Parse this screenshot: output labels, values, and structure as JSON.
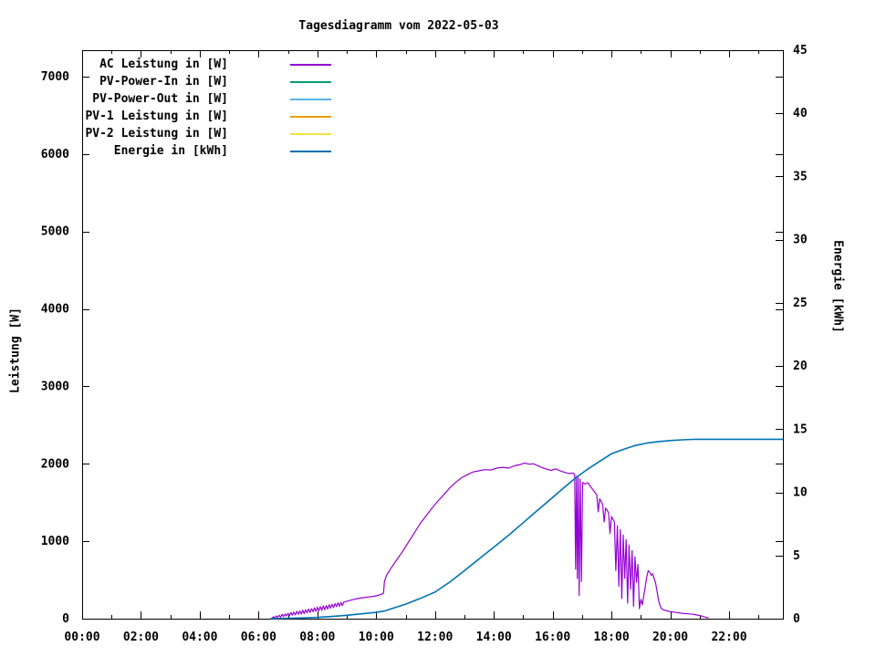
{
  "title": "Tagesdiagramm vom 2022-05-03",
  "chart_data": {
    "type": "line",
    "title": "Tagesdiagramm vom 2022-05-03",
    "xlabel": "",
    "grid": false,
    "legend_position": "top-left-inside",
    "x_axis": {
      "unit": "hours",
      "lim_hours": [
        0,
        23.83
      ],
      "major_tick_step_hours": 2,
      "minor_tick_step_hours": 1,
      "tick_labels": [
        "00:00",
        "02:00",
        "04:00",
        "06:00",
        "08:00",
        "10:00",
        "12:00",
        "14:00",
        "16:00",
        "18:00",
        "20:00",
        "22:00"
      ]
    },
    "y_left": {
      "label": "Leistung [W]",
      "ticks": [
        0,
        1000,
        2000,
        3000,
        4000,
        5000,
        6000,
        7000
      ],
      "lim": [
        0,
        7342
      ]
    },
    "y_right": {
      "label": "Energie [kWh]",
      "ticks": [
        0,
        5,
        10,
        15,
        20,
        25,
        30,
        35,
        40,
        45
      ],
      "lim": [
        0,
        45
      ]
    },
    "legend": {
      "entries": [
        {
          "label": "AC Leistung in [W]",
          "color": "#9400d3"
        },
        {
          "label": "PV-Power-In in [W]",
          "color": "#009e73"
        },
        {
          "label": "PV-Power-Out in [W]",
          "color": "#56b4e9"
        },
        {
          "label": "PV-1 Leistung in [W]",
          "color": "#e69f00"
        },
        {
          "label": "PV-2 Leistung in [W]",
          "color": "#f0e442"
        },
        {
          "label": "Energie in [kWh]",
          "color": "#0072b2"
        }
      ]
    },
    "series": [
      {
        "name": "AC Leistung in [W]",
        "color": "#9400d3",
        "axis": "left",
        "stroke_width": 1.2,
        "points": [
          [
            6.45,
            5
          ],
          [
            6.5,
            25
          ],
          [
            6.55,
            10
          ],
          [
            6.6,
            35
          ],
          [
            6.65,
            15
          ],
          [
            6.7,
            45
          ],
          [
            6.75,
            20
          ],
          [
            6.8,
            55
          ],
          [
            6.85,
            30
          ],
          [
            6.9,
            60
          ],
          [
            6.95,
            35
          ],
          [
            7.0,
            70
          ],
          [
            7.05,
            40
          ],
          [
            7.1,
            80
          ],
          [
            7.15,
            45
          ],
          [
            7.2,
            85
          ],
          [
            7.25,
            50
          ],
          [
            7.3,
            95
          ],
          [
            7.35,
            55
          ],
          [
            7.4,
            100
          ],
          [
            7.45,
            60
          ],
          [
            7.5,
            110
          ],
          [
            7.55,
            65
          ],
          [
            7.6,
            115
          ],
          [
            7.65,
            75
          ],
          [
            7.7,
            125
          ],
          [
            7.75,
            80
          ],
          [
            7.8,
            130
          ],
          [
            7.85,
            90
          ],
          [
            7.9,
            140
          ],
          [
            7.95,
            95
          ],
          [
            8.0,
            150
          ],
          [
            8.05,
            100
          ],
          [
            8.1,
            155
          ],
          [
            8.15,
            110
          ],
          [
            8.2,
            165
          ],
          [
            8.25,
            115
          ],
          [
            8.3,
            170
          ],
          [
            8.35,
            125
          ],
          [
            8.4,
            180
          ],
          [
            8.45,
            135
          ],
          [
            8.5,
            185
          ],
          [
            8.55,
            145
          ],
          [
            8.6,
            195
          ],
          [
            8.65,
            155
          ],
          [
            8.7,
            205
          ],
          [
            8.75,
            160
          ],
          [
            8.8,
            210
          ],
          [
            8.85,
            170
          ],
          [
            8.9,
            215
          ],
          [
            9.0,
            225
          ],
          [
            9.1,
            235
          ],
          [
            9.2,
            245
          ],
          [
            9.3,
            255
          ],
          [
            9.45,
            265
          ],
          [
            9.6,
            272
          ],
          [
            9.75,
            280
          ],
          [
            9.9,
            288
          ],
          [
            10.0,
            295
          ],
          [
            10.1,
            305
          ],
          [
            10.2,
            318
          ],
          [
            10.25,
            330
          ],
          [
            10.28,
            480
          ],
          [
            10.35,
            560
          ],
          [
            10.5,
            650
          ],
          [
            10.7,
            760
          ],
          [
            10.9,
            870
          ],
          [
            11.1,
            990
          ],
          [
            11.3,
            1110
          ],
          [
            11.5,
            1230
          ],
          [
            11.7,
            1330
          ],
          [
            11.9,
            1430
          ],
          [
            12.1,
            1520
          ],
          [
            12.3,
            1600
          ],
          [
            12.5,
            1690
          ],
          [
            12.7,
            1760
          ],
          [
            12.9,
            1820
          ],
          [
            13.1,
            1860
          ],
          [
            13.3,
            1895
          ],
          [
            13.5,
            1910
          ],
          [
            13.7,
            1925
          ],
          [
            13.9,
            1920
          ],
          [
            14.1,
            1945
          ],
          [
            14.3,
            1955
          ],
          [
            14.5,
            1945
          ],
          [
            14.7,
            1975
          ],
          [
            14.9,
            1990
          ],
          [
            15.05,
            2010
          ],
          [
            15.2,
            1995
          ],
          [
            15.35,
            2000
          ],
          [
            15.5,
            1975
          ],
          [
            15.65,
            1950
          ],
          [
            15.8,
            1930
          ],
          [
            15.95,
            1915
          ],
          [
            16.1,
            1935
          ],
          [
            16.25,
            1910
          ],
          [
            16.4,
            1890
          ],
          [
            16.55,
            1875
          ],
          [
            16.7,
            1880
          ],
          [
            16.75,
            1860
          ],
          [
            16.78,
            640
          ],
          [
            16.81,
            1840
          ],
          [
            16.84,
            520
          ],
          [
            16.87,
            1820
          ],
          [
            16.9,
            300
          ],
          [
            16.94,
            1800
          ],
          [
            16.98,
            480
          ],
          [
            17.02,
            1760
          ],
          [
            17.1,
            1740
          ],
          [
            17.2,
            1755
          ],
          [
            17.3,
            1700
          ],
          [
            17.4,
            1650
          ],
          [
            17.5,
            1600
          ],
          [
            17.55,
            1380
          ],
          [
            17.6,
            1550
          ],
          [
            17.7,
            1480
          ],
          [
            17.75,
            1250
          ],
          [
            17.8,
            1430
          ],
          [
            17.9,
            1370
          ],
          [
            17.95,
            1100
          ],
          [
            18.0,
            1320
          ],
          [
            18.1,
            1250
          ],
          [
            18.15,
            620
          ],
          [
            18.2,
            1200
          ],
          [
            18.25,
            420
          ],
          [
            18.3,
            1150
          ],
          [
            18.35,
            260
          ],
          [
            18.4,
            1080
          ],
          [
            18.45,
            520
          ],
          [
            18.5,
            1020
          ],
          [
            18.55,
            200
          ],
          [
            18.6,
            950
          ],
          [
            18.65,
            380
          ],
          [
            18.7,
            880
          ],
          [
            18.75,
            160
          ],
          [
            18.8,
            800
          ],
          [
            18.85,
            470
          ],
          [
            18.9,
            700
          ],
          [
            18.95,
            130
          ],
          [
            19.0,
            250
          ],
          [
            19.05,
            180
          ],
          [
            19.1,
            300
          ],
          [
            19.15,
            420
          ],
          [
            19.2,
            540
          ],
          [
            19.25,
            620
          ],
          [
            19.3,
            600
          ],
          [
            19.35,
            560
          ],
          [
            19.4,
            580
          ],
          [
            19.45,
            520
          ],
          [
            19.5,
            460
          ],
          [
            19.55,
            350
          ],
          [
            19.6,
            240
          ],
          [
            19.65,
            170
          ],
          [
            19.7,
            130
          ],
          [
            19.8,
            110
          ],
          [
            19.9,
            100
          ],
          [
            20.0,
            90
          ],
          [
            20.2,
            80
          ],
          [
            20.4,
            70
          ],
          [
            20.6,
            62
          ],
          [
            20.8,
            55
          ],
          [
            21.0,
            40
          ],
          [
            21.15,
            25
          ],
          [
            21.3,
            10
          ]
        ]
      },
      {
        "name": "PV-Power-In in [W]",
        "color": "#009e73",
        "axis": "left",
        "stroke_width": 1.2,
        "points": []
      },
      {
        "name": "PV-Power-Out in [W]",
        "color": "#56b4e9",
        "axis": "left",
        "stroke_width": 1.2,
        "points": []
      },
      {
        "name": "PV-1 Leistung in [W]",
        "color": "#e69f00",
        "axis": "left",
        "stroke_width": 1.2,
        "points": []
      },
      {
        "name": "PV-2 Leistung in [W]",
        "color": "#f0e442",
        "axis": "left",
        "stroke_width": 1.2,
        "points": []
      },
      {
        "name": "Energie in [kWh]",
        "color": "#0072b2",
        "axis": "right",
        "stroke_width": 1.6,
        "points": [
          [
            6.4,
            0
          ],
          [
            7.0,
            0.03
          ],
          [
            7.5,
            0.06
          ],
          [
            8.0,
            0.1
          ],
          [
            8.5,
            0.17
          ],
          [
            9.0,
            0.27
          ],
          [
            9.5,
            0.38
          ],
          [
            10.0,
            0.5
          ],
          [
            10.3,
            0.62
          ],
          [
            10.6,
            0.85
          ],
          [
            11.0,
            1.15
          ],
          [
            11.5,
            1.6
          ],
          [
            12.0,
            2.1
          ],
          [
            12.5,
            2.9
          ],
          [
            13.0,
            3.8
          ],
          [
            13.35,
            4.45
          ],
          [
            14.0,
            5.66
          ],
          [
            14.5,
            6.6
          ],
          [
            15.0,
            7.6
          ],
          [
            15.5,
            8.6
          ],
          [
            16.0,
            9.6
          ],
          [
            16.4,
            10.4
          ],
          [
            16.8,
            11.17
          ],
          [
            17.2,
            11.85
          ],
          [
            17.6,
            12.45
          ],
          [
            18.0,
            13.05
          ],
          [
            18.4,
            13.4
          ],
          [
            18.8,
            13.7
          ],
          [
            19.2,
            13.9
          ],
          [
            19.6,
            14.02
          ],
          [
            20.0,
            14.1
          ],
          [
            20.4,
            14.16
          ],
          [
            20.8,
            14.19
          ],
          [
            21.2,
            14.2
          ],
          [
            23.83,
            14.2
          ]
        ]
      }
    ]
  }
}
